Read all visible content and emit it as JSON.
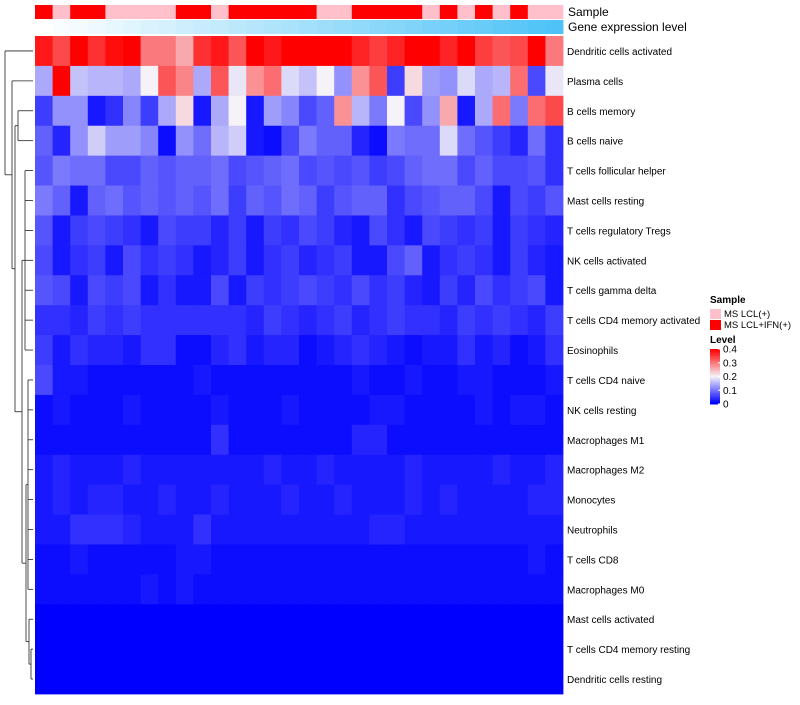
{
  "chart_data": {
    "type": "heatmap",
    "annotation_labels": [
      "Sample",
      "Gene expression level"
    ],
    "rows": [
      "Dendritic cells activated",
      "Plasma cells",
      "B cells memory",
      "B cells naive",
      "T cells follicular helper",
      "Mast cells resting",
      "T cells regulatory  Tregs",
      "NK cells activated",
      "T cells gamma delta",
      "T cells CD4 memory activated",
      "Eosinophils",
      "T cells CD4 naive",
      "NK cells resting",
      "Macrophages M1",
      "Macrophages M2",
      "Monocytes",
      "Neutrophils",
      "T cells CD8",
      "Macrophages M0",
      "Mast cells activated",
      "T cells CD4 memory resting",
      "Dendritic cells resting"
    ],
    "sample_annotation": [
      1,
      0,
      1,
      1,
      0,
      0,
      0,
      0,
      1,
      1,
      0,
      1,
      1,
      1,
      1,
      1,
      0,
      0,
      1,
      1,
      1,
      1,
      0,
      1,
      0,
      1,
      0,
      1,
      0,
      0
    ],
    "expression_annotation": [
      0.0,
      0.03,
      0.07,
      0.1,
      0.14,
      0.17,
      0.21,
      0.24,
      0.28,
      0.31,
      0.34,
      0.38,
      0.41,
      0.45,
      0.48,
      0.52,
      0.55,
      0.59,
      0.62,
      0.66,
      0.69,
      0.72,
      0.76,
      0.79,
      0.83,
      0.86,
      0.9,
      0.93,
      0.97,
      1.0
    ],
    "values": [
      [
        0.38,
        0.34,
        0.42,
        0.36,
        0.39,
        0.43,
        0.3,
        0.3,
        0.26,
        0.36,
        0.38,
        0.33,
        0.4,
        0.38,
        0.42,
        0.43,
        0.41,
        0.43,
        0.37,
        0.35,
        0.37,
        0.43,
        0.42,
        0.37,
        0.43,
        0.35,
        0.33,
        0.34,
        0.42,
        0.3
      ],
      [
        0.14,
        0.42,
        0.16,
        0.15,
        0.15,
        0.14,
        0.2,
        0.33,
        0.29,
        0.14,
        0.33,
        0.19,
        0.28,
        0.31,
        0.18,
        0.16,
        0.2,
        0.12,
        0.28,
        0.33,
        0.05,
        0.22,
        0.13,
        0.12,
        0.18,
        0.14,
        0.15,
        0.31,
        0.06,
        0.19
      ],
      [
        0.05,
        0.12,
        0.12,
        0.02,
        0.04,
        0.11,
        0.05,
        0.14,
        0.22,
        0.02,
        0.14,
        0.2,
        0.02,
        0.13,
        0.11,
        0.06,
        0.08,
        0.28,
        0.15,
        0.1,
        0.2,
        0.06,
        0.12,
        0.26,
        0.02,
        0.14,
        0.31,
        0.1,
        0.31,
        0.34
      ],
      [
        0.08,
        0.03,
        0.12,
        0.17,
        0.13,
        0.13,
        0.11,
        0.01,
        0.12,
        0.09,
        0.15,
        0.17,
        0.02,
        0.01,
        0.06,
        0.1,
        0.08,
        0.08,
        0.03,
        0.01,
        0.1,
        0.09,
        0.09,
        0.18,
        0.09,
        0.07,
        0.05,
        0.03,
        0.09,
        0.04
      ],
      [
        0.07,
        0.1,
        0.09,
        0.09,
        0.06,
        0.06,
        0.08,
        0.07,
        0.08,
        0.08,
        0.09,
        0.06,
        0.07,
        0.08,
        0.09,
        0.06,
        0.07,
        0.06,
        0.07,
        0.05,
        0.06,
        0.08,
        0.09,
        0.09,
        0.06,
        0.08,
        0.06,
        0.06,
        0.07,
        0.04
      ],
      [
        0.1,
        0.08,
        0.02,
        0.08,
        0.09,
        0.07,
        0.08,
        0.07,
        0.08,
        0.07,
        0.09,
        0.05,
        0.08,
        0.07,
        0.09,
        0.08,
        0.05,
        0.07,
        0.08,
        0.08,
        0.04,
        0.06,
        0.07,
        0.08,
        0.08,
        0.06,
        0.02,
        0.06,
        0.05,
        0.07
      ],
      [
        0.07,
        0.02,
        0.05,
        0.06,
        0.05,
        0.04,
        0.02,
        0.06,
        0.05,
        0.05,
        0.03,
        0.05,
        0.02,
        0.05,
        0.04,
        0.06,
        0.05,
        0.03,
        0.02,
        0.06,
        0.04,
        0.02,
        0.06,
        0.05,
        0.04,
        0.05,
        0.02,
        0.05,
        0.04,
        0.03
      ],
      [
        0.06,
        0.02,
        0.04,
        0.05,
        0.02,
        0.06,
        0.04,
        0.05,
        0.04,
        0.02,
        0.03,
        0.05,
        0.02,
        0.04,
        0.05,
        0.03,
        0.04,
        0.05,
        0.02,
        0.02,
        0.06,
        0.08,
        0.02,
        0.04,
        0.05,
        0.04,
        0.02,
        0.05,
        0.03,
        0.02
      ],
      [
        0.07,
        0.06,
        0.02,
        0.06,
        0.05,
        0.06,
        0.02,
        0.04,
        0.02,
        0.02,
        0.06,
        0.02,
        0.05,
        0.04,
        0.05,
        0.06,
        0.05,
        0.04,
        0.06,
        0.04,
        0.05,
        0.03,
        0.02,
        0.05,
        0.03,
        0.06,
        0.04,
        0.05,
        0.06,
        0.02
      ],
      [
        0.04,
        0.04,
        0.03,
        0.05,
        0.04,
        0.05,
        0.04,
        0.04,
        0.04,
        0.04,
        0.04,
        0.04,
        0.03,
        0.05,
        0.04,
        0.03,
        0.04,
        0.05,
        0.03,
        0.04,
        0.05,
        0.04,
        0.04,
        0.03,
        0.05,
        0.04,
        0.05,
        0.04,
        0.03,
        0.05
      ],
      [
        0.05,
        0.02,
        0.04,
        0.03,
        0.03,
        0.02,
        0.04,
        0.04,
        0.01,
        0.01,
        0.03,
        0.04,
        0.02,
        0.03,
        0.03,
        0.01,
        0.02,
        0.03,
        0.04,
        0.03,
        0.02,
        0.01,
        0.02,
        0.02,
        0.04,
        0.02,
        0.03,
        0.01,
        0.02,
        0.04
      ],
      [
        0.06,
        0.02,
        0.02,
        0.01,
        0.01,
        0.01,
        0.01,
        0.01,
        0.01,
        0.02,
        0.01,
        0.01,
        0.01,
        0.01,
        0.01,
        0.01,
        0.01,
        0.01,
        0.02,
        0.01,
        0.01,
        0.02,
        0.01,
        0.01,
        0.02,
        0.02,
        0.01,
        0.01,
        0.01,
        0.02
      ],
      [
        0.01,
        0.02,
        0.01,
        0.01,
        0.01,
        0.02,
        0.01,
        0.01,
        0.01,
        0.01,
        0.02,
        0.01,
        0.01,
        0.01,
        0.02,
        0.01,
        0.01,
        0.01,
        0.01,
        0.02,
        0.02,
        0.01,
        0.01,
        0.01,
        0.01,
        0.02,
        0.01,
        0.02,
        0.02,
        0.01
      ],
      [
        0.01,
        0.01,
        0.01,
        0.01,
        0.01,
        0.01,
        0.01,
        0.01,
        0.01,
        0.01,
        0.04,
        0.01,
        0.01,
        0.01,
        0.01,
        0.01,
        0.01,
        0.01,
        0.03,
        0.03,
        0.01,
        0.01,
        0.01,
        0.01,
        0.01,
        0.01,
        0.01,
        0.01,
        0.01,
        0.01
      ],
      [
        0.02,
        0.03,
        0.02,
        0.02,
        0.02,
        0.03,
        0.02,
        0.02,
        0.02,
        0.02,
        0.02,
        0.02,
        0.02,
        0.03,
        0.02,
        0.02,
        0.03,
        0.02,
        0.02,
        0.02,
        0.02,
        0.03,
        0.02,
        0.02,
        0.02,
        0.02,
        0.03,
        0.02,
        0.02,
        0.03
      ],
      [
        0.02,
        0.03,
        0.02,
        0.03,
        0.03,
        0.02,
        0.02,
        0.03,
        0.02,
        0.02,
        0.03,
        0.02,
        0.02,
        0.02,
        0.03,
        0.02,
        0.02,
        0.03,
        0.02,
        0.02,
        0.02,
        0.03,
        0.02,
        0.03,
        0.02,
        0.02,
        0.02,
        0.02,
        0.03,
        0.03
      ],
      [
        0.02,
        0.02,
        0.04,
        0.04,
        0.04,
        0.03,
        0.02,
        0.02,
        0.02,
        0.04,
        0.02,
        0.02,
        0.02,
        0.02,
        0.02,
        0.02,
        0.02,
        0.02,
        0.02,
        0.03,
        0.03,
        0.02,
        0.02,
        0.02,
        0.02,
        0.02,
        0.02,
        0.02,
        0.02,
        0.02
      ],
      [
        0.01,
        0.01,
        0.02,
        0.01,
        0.01,
        0.01,
        0.01,
        0.01,
        0.02,
        0.02,
        0.01,
        0.01,
        0.01,
        0.01,
        0.01,
        0.01,
        0.01,
        0.01,
        0.01,
        0.01,
        0.01,
        0.01,
        0.01,
        0.01,
        0.01,
        0.01,
        0.01,
        0.01,
        0.02,
        0.01
      ],
      [
        0.01,
        0.01,
        0.01,
        0.01,
        0.01,
        0.01,
        0.02,
        0.01,
        0.02,
        0.01,
        0.01,
        0.01,
        0.01,
        0.01,
        0.01,
        0.01,
        0.01,
        0.01,
        0.01,
        0.01,
        0.01,
        0.01,
        0.01,
        0.01,
        0.01,
        0.01,
        0.01,
        0.01,
        0.01,
        0.01
      ],
      [
        0.0,
        0.0,
        0.0,
        0.0,
        0.0,
        0.0,
        0.0,
        0.0,
        0.0,
        0.0,
        0.0,
        0.0,
        0.0,
        0.0,
        0.0,
        0.0,
        0.0,
        0.0,
        0.0,
        0.0,
        0.0,
        0.0,
        0.0,
        0.0,
        0.0,
        0.0,
        0.0,
        0.0,
        0.0,
        0.0
      ],
      [
        0.0,
        0.0,
        0.0,
        0.0,
        0.0,
        0.0,
        0.0,
        0.0,
        0.0,
        0.0,
        0.0,
        0.0,
        0.0,
        0.0,
        0.0,
        0.0,
        0.0,
        0.0,
        0.0,
        0.0,
        0.0,
        0.0,
        0.0,
        0.0,
        0.0,
        0.0,
        0.0,
        0.0,
        0.0,
        0.0
      ],
      [
        0.0,
        0.0,
        0.0,
        0.0,
        0.0,
        0.0,
        0.0,
        0.0,
        0.0,
        0.0,
        0.0,
        0.0,
        0.0,
        0.0,
        0.0,
        0.0,
        0.0,
        0.0,
        0.0,
        0.0,
        0.0,
        0.0,
        0.0,
        0.0,
        0.0,
        0.0,
        0.0,
        0.0,
        0.0,
        0.0
      ]
    ],
    "color_scale": {
      "low": "#0000ff",
      "mid": "#f5f2f8",
      "high": "#ff0000",
      "domain": [
        0,
        0.2,
        0.4
      ]
    },
    "sample_colors": [
      "#ffc0cb",
      "#ff0000"
    ],
    "expression_colors": [
      "#ffffff",
      "#4fc3f7"
    ],
    "legend": {
      "sample_title": "Sample",
      "sample_items": [
        "MS LCL(+)",
        "MS LCL+IFN(+)"
      ],
      "level_title": "Level",
      "level_ticks": [
        "0.4",
        "0.3",
        "0.2",
        "0.1",
        "0"
      ],
      "level_values": [
        0.4,
        0.3,
        0.2,
        0.1,
        0.0
      ],
      "placement": "right"
    }
  }
}
